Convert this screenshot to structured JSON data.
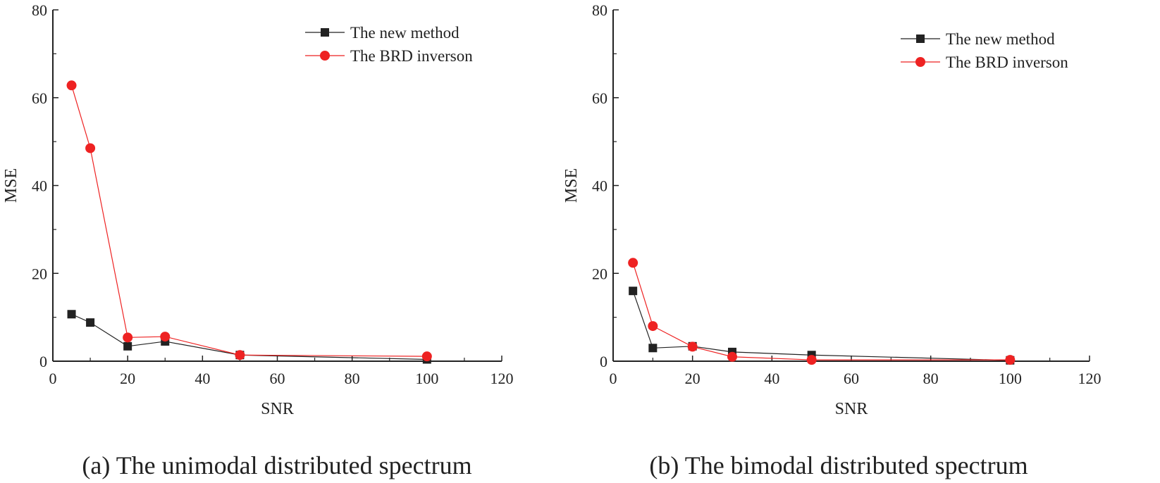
{
  "chart_data": [
    {
      "type": "line",
      "caption": "(a) The unimodal distributed spectrum",
      "xlabel": "SNR",
      "ylabel": "MSE",
      "xlim": [
        0,
        120
      ],
      "ylim": [
        0,
        80
      ],
      "xticks": [
        0,
        20,
        40,
        60,
        80,
        100,
        120
      ],
      "yticks": [
        0,
        20,
        40,
        60,
        80
      ],
      "grid": false,
      "legend_position": "top-right",
      "x": [
        5,
        10,
        20,
        30,
        50,
        100
      ],
      "series": [
        {
          "name": "The new method",
          "color": "#222222",
          "marker": "square",
          "values": [
            10.7,
            8.8,
            3.4,
            4.5,
            1.4,
            0.4
          ]
        },
        {
          "name": "The BRD inverson",
          "color": "#ee2222",
          "marker": "circle",
          "values": [
            62.8,
            48.5,
            5.4,
            5.6,
            1.4,
            1.1
          ]
        }
      ]
    },
    {
      "type": "line",
      "caption": "(b) The bimodal distributed spectrum",
      "xlabel": "SNR",
      "ylabel": "MSE",
      "xlim": [
        0,
        120
      ],
      "ylim": [
        0,
        80
      ],
      "xticks": [
        0,
        20,
        40,
        60,
        80,
        100,
        120
      ],
      "yticks": [
        0,
        20,
        40,
        60,
        80
      ],
      "grid": false,
      "legend_position": "top-right",
      "x": [
        5,
        10,
        20,
        30,
        50,
        100
      ],
      "series": [
        {
          "name": "The new method",
          "color": "#222222",
          "marker": "square",
          "values": [
            16.0,
            3.0,
            3.4,
            2.1,
            1.4,
            0.2
          ]
        },
        {
          "name": "The BRD inverson",
          "color": "#ee2222",
          "marker": "circle",
          "values": [
            22.4,
            8.0,
            3.3,
            1.0,
            0.3,
            0.3
          ]
        }
      ]
    }
  ]
}
